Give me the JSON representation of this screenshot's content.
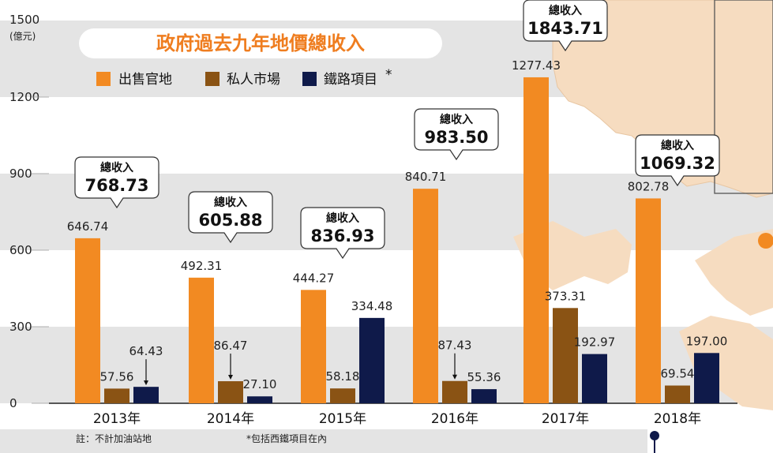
{
  "chart_data": {
    "type": "bar",
    "title": "政府過去九年地價總收入",
    "ylabel_value": "1500",
    "ylabel_unit": "(億元)",
    "categories": [
      "2013年",
      "2014年",
      "2015年",
      "2016年",
      "2017年",
      "2018年"
    ],
    "ylim": [
      0,
      1500
    ],
    "yticks": [
      0,
      300,
      600,
      900,
      1200
    ],
    "series": [
      {
        "name": "出售官地",
        "color": "#f28a22",
        "values": [
          646.74,
          492.31,
          444.27,
          840.71,
          1277.43,
          802.78
        ],
        "labels": [
          "646.74",
          "492.31",
          "444.27",
          "840.71",
          "1277.43",
          "802.78"
        ]
      },
      {
        "name": "私人市場",
        "color": "#8a5314",
        "values": [
          57.56,
          86.47,
          58.18,
          87.43,
          373.31,
          69.54
        ],
        "labels": [
          "57.56",
          "86.47",
          "58.18",
          "87.43",
          "373.31",
          "69.54"
        ]
      },
      {
        "name": "鐵路項目",
        "color": "#0f1a4a",
        "values": [
          64.43,
          27.1,
          334.48,
          55.36,
          192.97,
          197.0
        ],
        "labels": [
          "64.43",
          "27.10",
          "334.48",
          "55.36",
          "192.97",
          "197.00"
        ]
      }
    ],
    "legend_asterisk": "*",
    "totals": {
      "label": "總收入",
      "values": [
        "768.73",
        "605.88",
        "836.93",
        "983.50",
        "1843.71",
        "1069.32"
      ]
    },
    "notes": [
      "註：不計加油站地",
      "*包括西鐵項目在內"
    ],
    "grid": "horizontal bands",
    "legend": "top-left"
  },
  "colors": {
    "band": "#e4e4e4",
    "map": "#f6dcc0",
    "accent": "#ef7d1f"
  }
}
